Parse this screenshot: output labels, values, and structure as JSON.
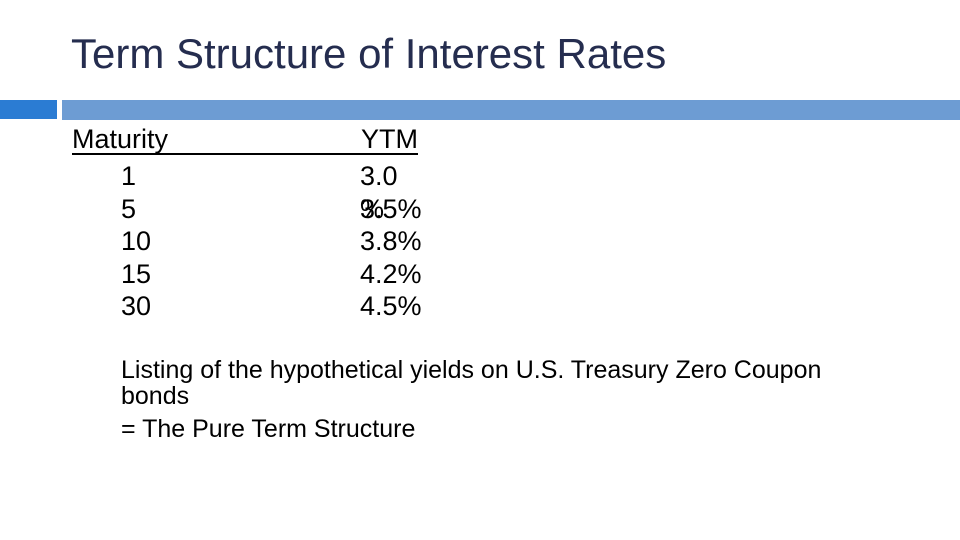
{
  "slide": {
    "title": "Term Structure of Interest Rates",
    "colors": {
      "title_text": "#252D4F",
      "divider_accent_dark": "#2B7CD3",
      "divider_accent_light": "#6D9CD3",
      "body_text": "#000000",
      "background": "#FFFFFF"
    },
    "table": {
      "headers": [
        "Maturity",
        "YTM"
      ],
      "rows": [
        {
          "maturity": "1",
          "ytm": "3.0 %"
        },
        {
          "maturity": "5",
          "ytm": "3.5%"
        },
        {
          "maturity": "10",
          "ytm": "3.8%"
        },
        {
          "maturity": "15",
          "ytm": "4.2%"
        },
        {
          "maturity": "30",
          "ytm": "4.5%"
        }
      ]
    },
    "notes": [
      "Listing of the hypothetical yields on U.S. Treasury Zero Coupon bonds",
      "= The Pure Term Structure"
    ]
  }
}
